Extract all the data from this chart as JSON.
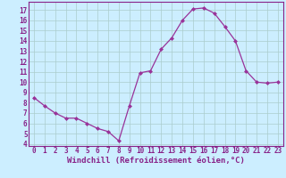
{
  "x": [
    0,
    1,
    2,
    3,
    4,
    5,
    6,
    7,
    8,
    9,
    10,
    11,
    12,
    13,
    14,
    15,
    16,
    17,
    18,
    19,
    20,
    21,
    22,
    23
  ],
  "y": [
    8.5,
    7.7,
    7.0,
    6.5,
    6.5,
    6.0,
    5.5,
    5.2,
    4.3,
    7.7,
    10.9,
    11.1,
    13.2,
    14.3,
    16.0,
    17.1,
    17.2,
    16.7,
    15.4,
    14.0,
    11.1,
    10.0,
    9.9,
    10.0
  ],
  "line_color": "#993399",
  "marker": "D",
  "marker_size": 2,
  "bg_color": "#cceeff",
  "grid_color": "#aacccc",
  "xlabel": "Windchill (Refroidissement éolien,°C)",
  "xlim": [
    -0.5,
    23.5
  ],
  "ylim": [
    3.8,
    17.8
  ],
  "yticks": [
    4,
    5,
    6,
    7,
    8,
    9,
    10,
    11,
    12,
    13,
    14,
    15,
    16,
    17
  ],
  "xticks": [
    0,
    1,
    2,
    3,
    4,
    5,
    6,
    7,
    8,
    9,
    10,
    11,
    12,
    13,
    14,
    15,
    16,
    17,
    18,
    19,
    20,
    21,
    22,
    23
  ],
  "tick_color": "#882288",
  "label_fontsize": 6.5,
  "tick_fontsize": 5.5
}
